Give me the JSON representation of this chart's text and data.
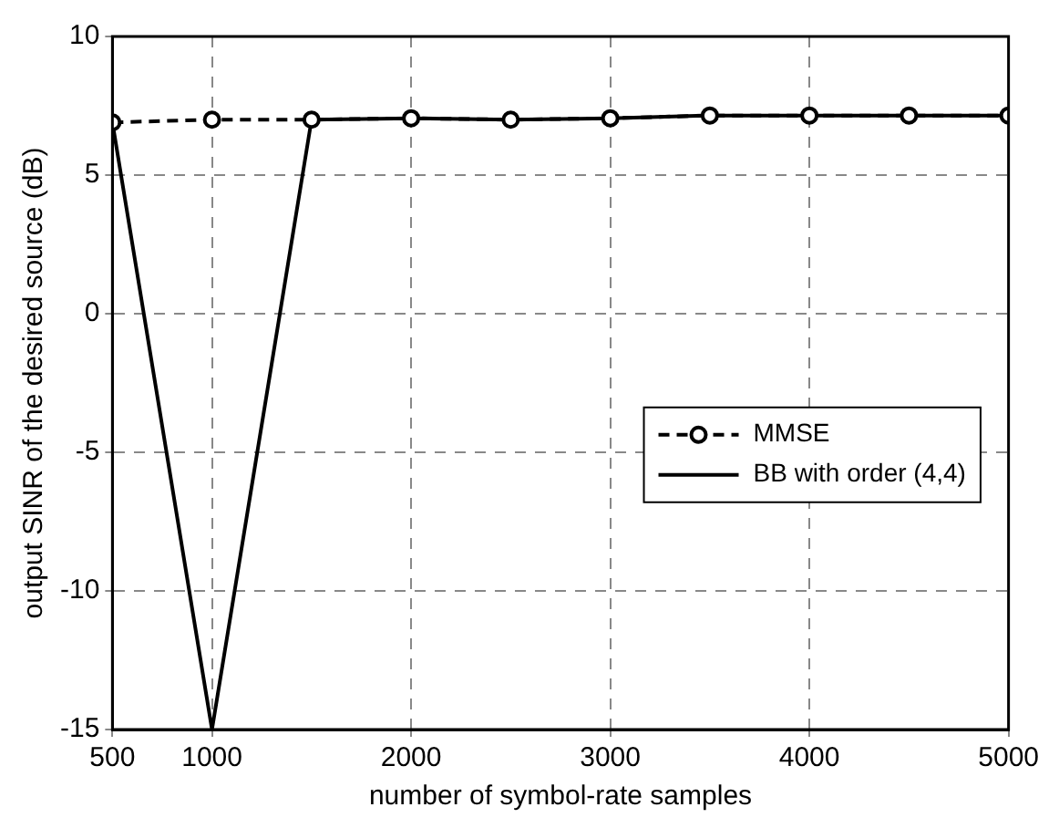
{
  "chart_data": {
    "type": "line",
    "xlabel": "number of symbol-rate samples",
    "ylabel": "output SINR of the desired source (dB)",
    "x": [
      500,
      1000,
      1500,
      2000,
      2500,
      3000,
      3500,
      4000,
      4500,
      5000
    ],
    "series": [
      {
        "name": "MMSE",
        "color": "#000000",
        "marker": "circle",
        "line_style": "dashed",
        "values": [
          6.9,
          7.0,
          7.0,
          7.05,
          7.0,
          7.05,
          7.15,
          7.15,
          7.15,
          7.15
        ]
      },
      {
        "name": "BB with order (4,4)",
        "color": "#000000",
        "marker": "none",
        "line_style": "solid",
        "values": [
          6.9,
          -15,
          7.0,
          7.05,
          7.0,
          7.05,
          7.15,
          7.15,
          7.15,
          7.15
        ]
      }
    ],
    "xlim": [
      500,
      5000
    ],
    "xticks": [
      500,
      1000,
      2000,
      3000,
      4000,
      5000
    ],
    "ylim": [
      -15,
      10
    ],
    "yticks": [
      -15,
      -10,
      -5,
      0,
      5,
      10
    ],
    "grid": true,
    "legend": "right"
  }
}
